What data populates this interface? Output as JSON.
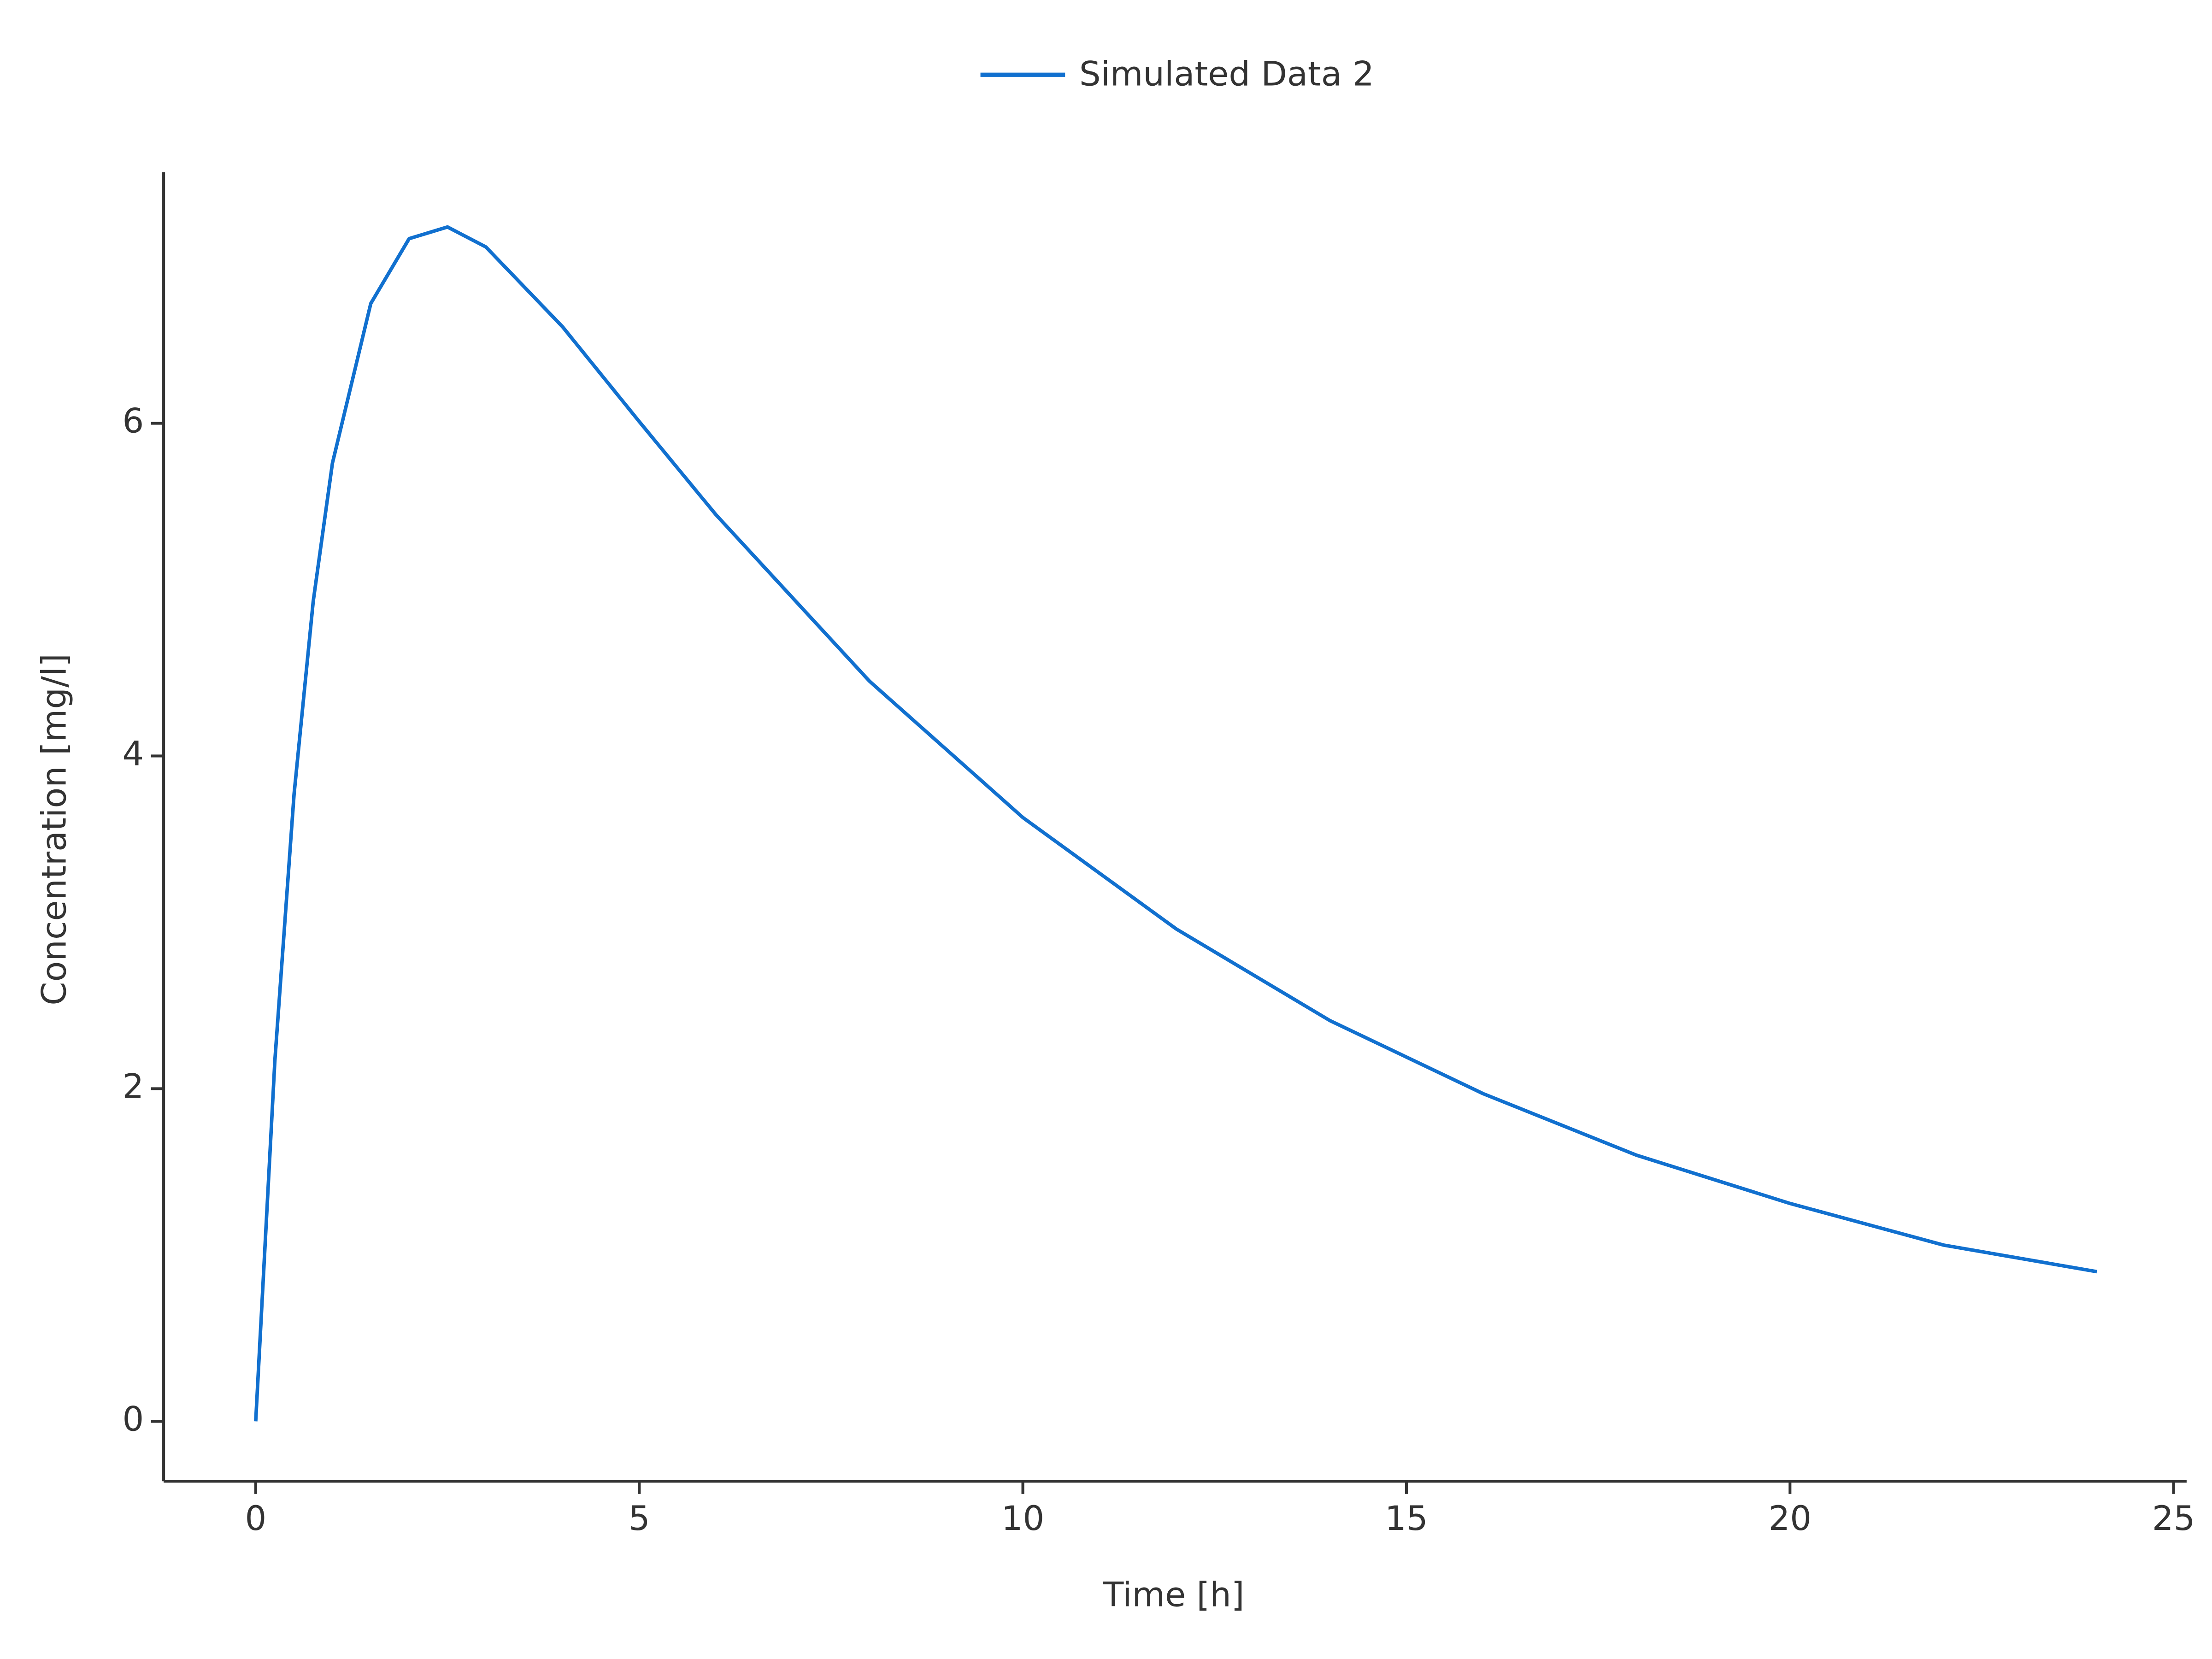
{
  "chart_data": {
    "type": "line",
    "x_label": "Time [h]",
    "y_label": "Concentration [mg/l]",
    "x": [
      0,
      0.25,
      0.5,
      0.75,
      1,
      1.5,
      2,
      2.5,
      3,
      4,
      5,
      6,
      8,
      10,
      12,
      14,
      16,
      18,
      20,
      22,
      24
    ],
    "series": [
      {
        "name": "Simulated Data 2",
        "color": "#1170cf",
        "values": [
          0,
          2.17,
          3.77,
          4.93,
          5.76,
          6.72,
          7.11,
          7.18,
          7.06,
          6.58,
          6.01,
          5.45,
          4.45,
          3.63,
          2.96,
          2.41,
          1.97,
          1.6,
          1.31,
          1.06,
          0.9
        ]
      }
    ],
    "xlim": [
      -1.2,
      25.17
    ],
    "ylim": [
      -0.36,
      7.51
    ],
    "xticks": [
      0,
      5,
      10,
      15,
      20,
      25
    ],
    "yticks": [
      0,
      2,
      4,
      6
    ],
    "legend": "top"
  }
}
